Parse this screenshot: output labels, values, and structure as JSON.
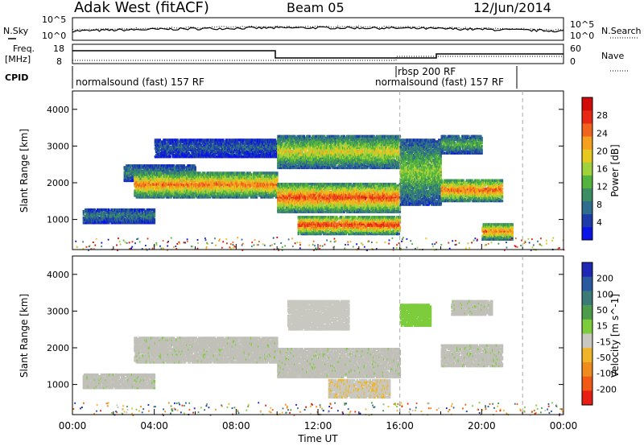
{
  "header": {
    "radar": "Adak West (fitACF)",
    "beam": "Beam 05",
    "date": "12/Jun/2014"
  },
  "noise_panel": {
    "left_label": "N.Sky",
    "right_label": "N.Search",
    "left_ticks": [
      "10^5",
      "10^0"
    ],
    "right_ticks": [
      "10^5",
      "10^0"
    ]
  },
  "freq_panel": {
    "left_label_1": "Freq.",
    "left_label_2": "[MHz]",
    "right_label": "Nave",
    "left_ticks": [
      "18",
      "8"
    ],
    "right_ticks": [
      "60",
      "0"
    ]
  },
  "cpid": {
    "label": "CPID",
    "modes": [
      {
        "text": "normalsound (fast) 157 RF",
        "start_hour": 0
      },
      {
        "text": "rbsp 200 RF",
        "start_hour": 16
      },
      {
        "text": "normalsound (fast) 157 RF",
        "start_hour": 16
      }
    ],
    "boundary_hours": [
      16,
      22
    ]
  },
  "colors": {
    "background": "#ffffff",
    "ground_scatter": "#c0c0b8",
    "frame": "#000000"
  },
  "chart_data": [
    {
      "type": "heatmap",
      "title": "",
      "xlabel": "",
      "ylabel": "Slant Range [km]",
      "xlim": [
        0,
        24
      ],
      "ylim": [
        180,
        4500
      ],
      "y_ticks": [
        "1000",
        "2000",
        "3000",
        "4000"
      ],
      "colorbar": {
        "label": "Power [dB]",
        "ticks": [
          "4",
          "8",
          "12",
          "16",
          "20",
          "24",
          "28"
        ],
        "colors": [
          "#0a14e6",
          "#1e3ca8",
          "#2e6e8c",
          "#3c8c64",
          "#52b43c",
          "#a0d23c",
          "#e6c81e",
          "#f5a01e",
          "#f0641e",
          "#e62814",
          "#d20a0a"
        ]
      },
      "echo_bands": [
        {
          "t0": 0.5,
          "t1": 4.0,
          "r0": 900,
          "r1": 1300,
          "power": 8
        },
        {
          "t0": 2.5,
          "t1": 6.0,
          "r0": 2050,
          "r1": 2500,
          "power": 9
        },
        {
          "t0": 3.0,
          "t1": 10.0,
          "r0": 1600,
          "r1": 2300,
          "power": 22
        },
        {
          "t0": 4.0,
          "t1": 10.0,
          "r0": 2700,
          "r1": 3200,
          "power": 6
        },
        {
          "t0": 10.0,
          "t1": 16.0,
          "r0": 2400,
          "r1": 3300,
          "power": 17
        },
        {
          "t0": 10.0,
          "t1": 16.0,
          "r0": 1200,
          "r1": 2000,
          "power": 24
        },
        {
          "t0": 11.0,
          "t1": 16.0,
          "r0": 600,
          "r1": 1100,
          "power": 25
        },
        {
          "t0": 16.0,
          "t1": 18.0,
          "r0": 1400,
          "r1": 3200,
          "power": 14
        },
        {
          "t0": 18.0,
          "t1": 21.0,
          "r0": 1500,
          "r1": 2100,
          "power": 23
        },
        {
          "t0": 18.0,
          "t1": 20.0,
          "r0": 2800,
          "r1": 3300,
          "power": 12
        },
        {
          "t0": 20.0,
          "t1": 21.5,
          "r0": 450,
          "r1": 900,
          "power": 22
        }
      ]
    },
    {
      "type": "heatmap",
      "title": "",
      "xlabel": "Time UT",
      "ylabel": "Slant Range [km]",
      "xlim": [
        0,
        24
      ],
      "ylim": [
        180,
        4500
      ],
      "x_ticks": [
        "00:00",
        "04:00",
        "08:00",
        "12:00",
        "16:00",
        "20:00",
        "00:00"
      ],
      "y_ticks": [
        "1000",
        "2000",
        "3000",
        "4000"
      ],
      "colorbar": {
        "label": "Velocity [m s^-1]",
        "ticks": [
          "200",
          "100",
          "50",
          "15",
          "-15",
          "-50",
          "-100",
          "-200"
        ],
        "colors": [
          "#1e28b4",
          "#2a5aa0",
          "#3c7a78",
          "#4c9c4c",
          "#7ccc3c",
          "#c8c8c0",
          "#f0b428",
          "#f08c1e",
          "#f05a14",
          "#e61e14"
        ]
      },
      "echo_bands": [
        {
          "t0": 0.5,
          "t1": 4.0,
          "r0": 900,
          "r1": 1300,
          "velocity": 0
        },
        {
          "t0": 3.0,
          "t1": 10.0,
          "r0": 1600,
          "r1": 2300,
          "velocity": 0
        },
        {
          "t0": 10.0,
          "t1": 16.0,
          "r0": 1200,
          "r1": 2000,
          "velocity": 0
        },
        {
          "t0": 10.5,
          "t1": 13.5,
          "r0": 2500,
          "r1": 3300,
          "velocity": -30
        },
        {
          "t0": 12.5,
          "t1": 15.5,
          "r0": 650,
          "r1": 1150,
          "velocity": -40
        },
        {
          "t0": 16.0,
          "t1": 17.5,
          "r0": 2600,
          "r1": 3200,
          "velocity": 25
        },
        {
          "t0": 18.0,
          "t1": 21.0,
          "r0": 1500,
          "r1": 2100,
          "velocity": 0
        },
        {
          "t0": 18.5,
          "t1": 20.5,
          "r0": 2900,
          "r1": 3300,
          "velocity": 0
        }
      ]
    }
  ]
}
